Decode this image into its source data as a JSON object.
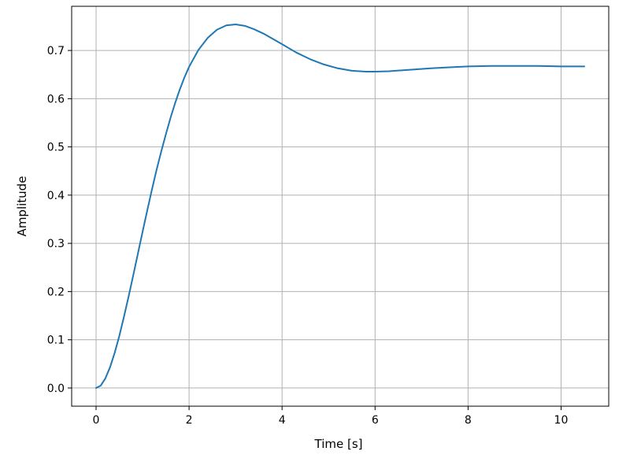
{
  "chart_data": {
    "type": "line",
    "title": "",
    "xlabel": "Time [s]",
    "ylabel": "Amplitude",
    "xlim": [
      -0.525,
      11.025
    ],
    "ylim": [
      -0.0377,
      0.7916
    ],
    "xticks": [
      0,
      2,
      4,
      6,
      8,
      10
    ],
    "yticks": [
      0.0,
      0.1,
      0.2,
      0.3,
      0.4,
      0.5,
      0.6,
      0.7
    ],
    "xtick_labels": [
      "0",
      "2",
      "4",
      "6",
      "8",
      "10"
    ],
    "ytick_labels": [
      "0.0",
      "0.1",
      "0.2",
      "0.3",
      "0.4",
      "0.5",
      "0.6",
      "0.7"
    ],
    "grid": true,
    "line_color": "#1f77b4",
    "series": [
      {
        "x": [
          0,
          0.1,
          0.2,
          0.3,
          0.4,
          0.5,
          0.6,
          0.7,
          0.8,
          0.9,
          1.0,
          1.1,
          1.2,
          1.3,
          1.4,
          1.5,
          1.6,
          1.7,
          1.8,
          1.9,
          2.0,
          2.2,
          2.4,
          2.6,
          2.8,
          3.0,
          3.2,
          3.4,
          3.6,
          3.8,
          4.0,
          4.3,
          4.6,
          4.9,
          5.2,
          5.5,
          5.8,
          6.0,
          6.3,
          6.6,
          6.9,
          7.2,
          7.6,
          8.0,
          8.5,
          9.0,
          9.5,
          10.0,
          10.5
        ],
        "y": [
          0.0,
          0.005,
          0.02,
          0.043,
          0.073,
          0.108,
          0.148,
          0.19,
          0.234,
          0.279,
          0.324,
          0.368,
          0.411,
          0.452,
          0.49,
          0.526,
          0.56,
          0.591,
          0.619,
          0.644,
          0.666,
          0.701,
          0.726,
          0.743,
          0.752,
          0.754,
          0.751,
          0.744,
          0.735,
          0.724,
          0.713,
          0.696,
          0.682,
          0.671,
          0.663,
          0.658,
          0.656,
          0.656,
          0.657,
          0.659,
          0.661,
          0.663,
          0.665,
          0.667,
          0.668,
          0.668,
          0.668,
          0.667,
          0.667
        ]
      }
    ]
  }
}
